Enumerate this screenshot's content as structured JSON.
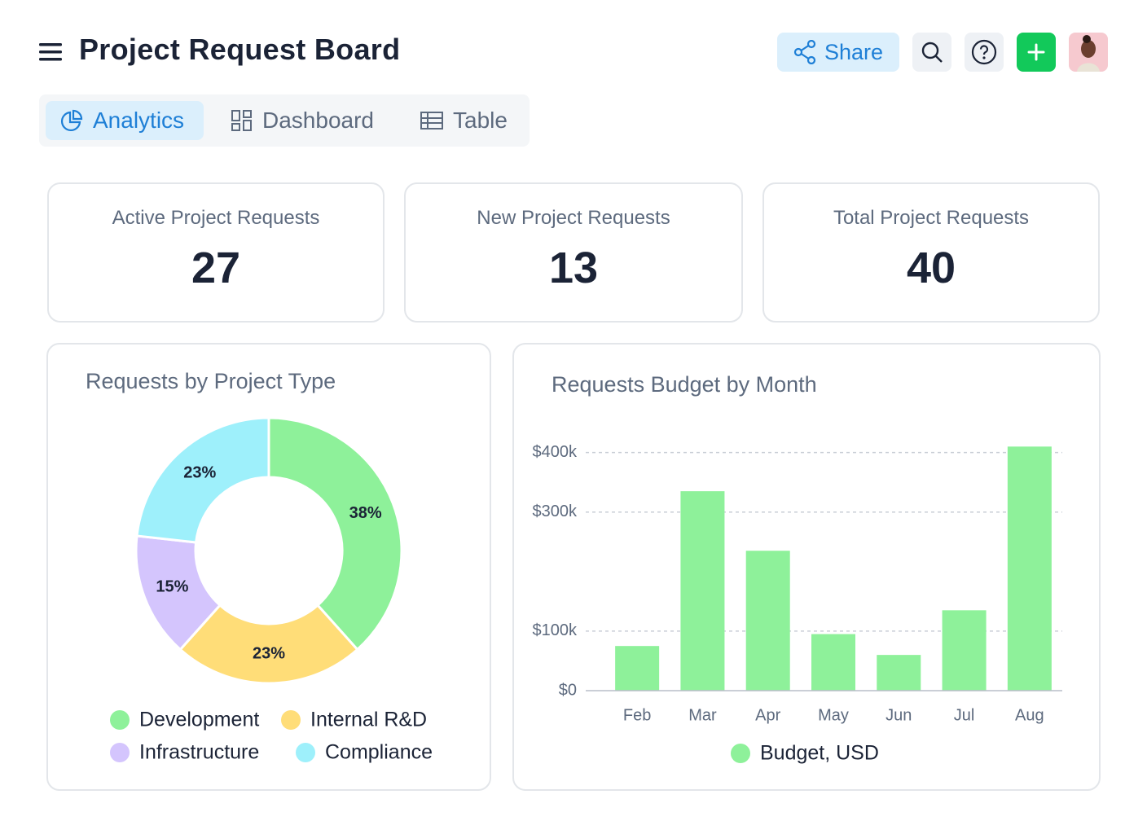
{
  "header": {
    "title": "Project Request Board",
    "share": "Share"
  },
  "tabs": [
    "Analytics",
    "Dashboard",
    "Table"
  ],
  "kpis": [
    {
      "label": "Active Project Requests",
      "value": 27
    },
    {
      "label": "New Project Requests",
      "value": 13
    },
    {
      "label": "Total Project Requests",
      "value": 40
    }
  ],
  "chart_data": [
    {
      "type": "pie",
      "title": "Requests by Project Type",
      "categories": [
        "Development",
        "Internal R&D",
        "Infrastructure",
        "Compliance"
      ],
      "values": [
        38,
        23,
        15,
        23
      ],
      "value_labels": [
        "38%",
        "23%",
        "15%",
        "23%"
      ],
      "colors": [
        "#8ef19a",
        "#ffdd78",
        "#d4c5fd",
        "#9ef0fb"
      ],
      "legend": "bottom"
    },
    {
      "type": "bar",
      "title": "Requests Budget by Month",
      "categories": [
        "Feb",
        "Mar",
        "Apr",
        "May",
        "Jun",
        "Jul",
        "Aug"
      ],
      "series": [
        {
          "name": "Budget, USD",
          "color": "#8ef19a",
          "values": [
            75000,
            335000,
            235000,
            95000,
            60000,
            135000,
            410000
          ]
        }
      ],
      "ylim": [
        0,
        420000
      ],
      "yticks": [
        {
          "value": 0,
          "label": "$0"
        },
        {
          "value": 100000,
          "label": "$100k"
        },
        {
          "value": 300000,
          "label": "$300k"
        },
        {
          "value": 400000,
          "label": "$400k"
        }
      ],
      "grid": true,
      "legend": "bottom"
    }
  ]
}
